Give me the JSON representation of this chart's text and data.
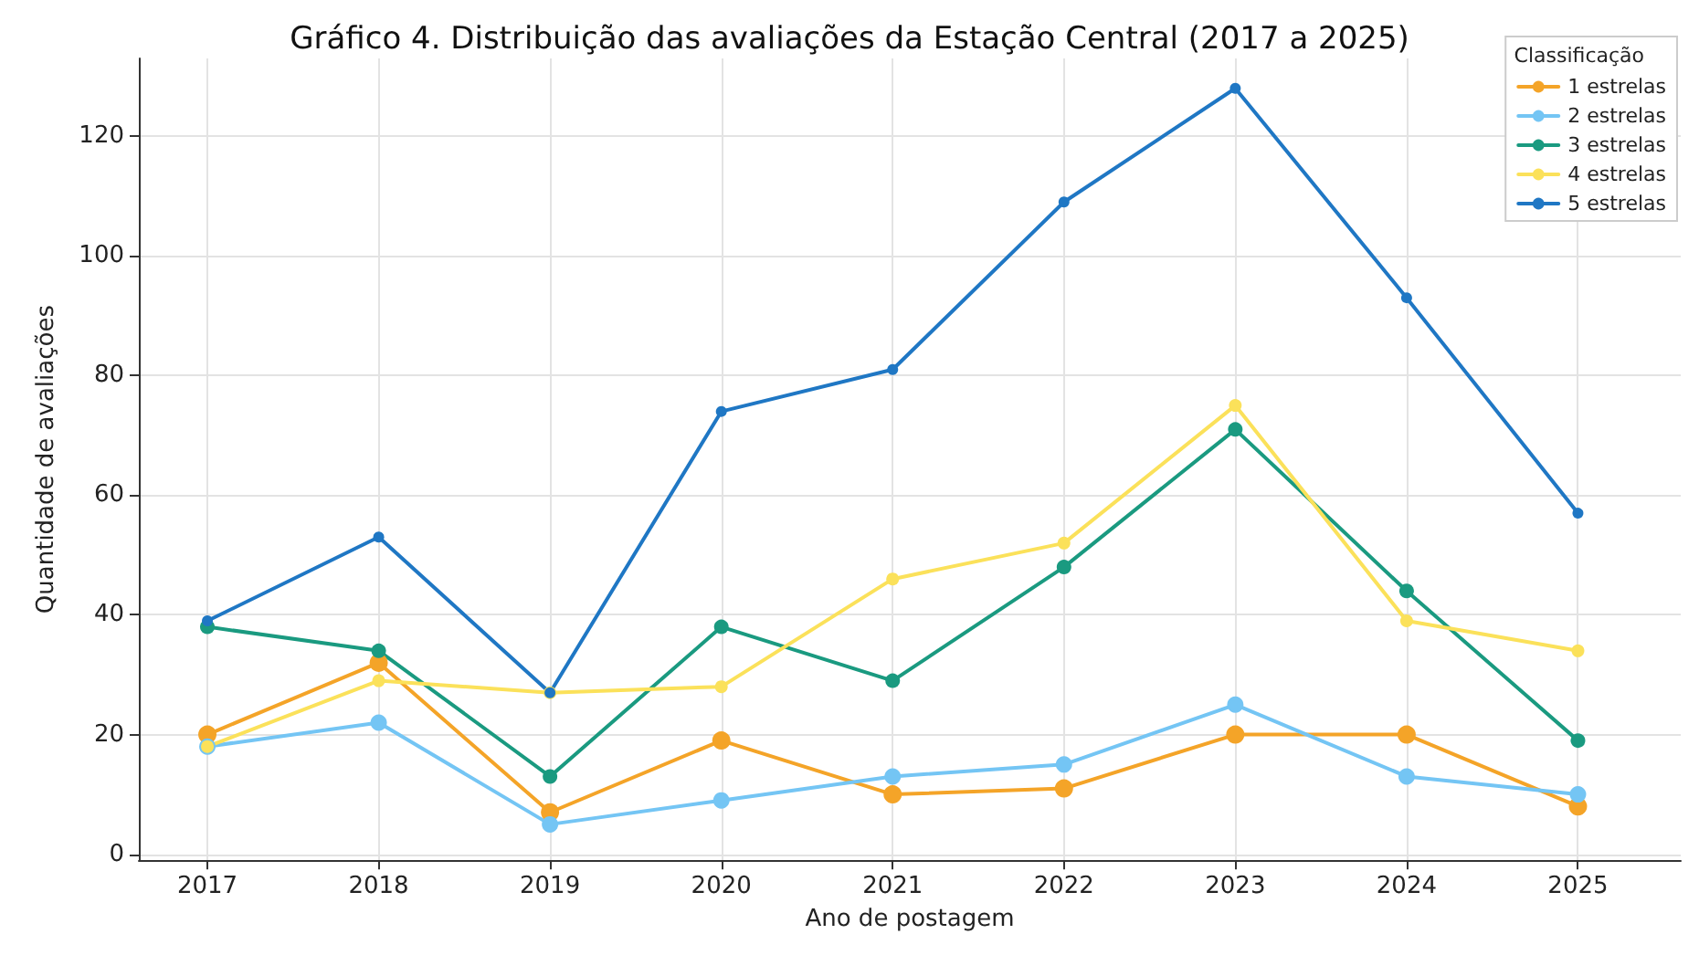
{
  "chart_data": {
    "type": "line",
    "title": "Gráfico 4. Distribuição das avaliações da Estação Central (2017 a 2025)",
    "xlabel": "Ano de postagem",
    "ylabel": "Quantidade de avaliações",
    "legend_title": "Classificação",
    "x": [
      2017,
      2018,
      2019,
      2020,
      2021,
      2022,
      2023,
      2024,
      2025
    ],
    "series": [
      {
        "name": "1 estrelas",
        "color": "#f4a428",
        "values": [
          20,
          32,
          7,
          19,
          10,
          11,
          20,
          20,
          8
        ]
      },
      {
        "name": "2 estrelas",
        "color": "#74c5f4",
        "values": [
          18,
          22,
          5,
          9,
          13,
          15,
          25,
          13,
          10
        ]
      },
      {
        "name": "3 estrelas",
        "color": "#1a9a80",
        "values": [
          38,
          34,
          13,
          38,
          29,
          48,
          71,
          44,
          19
        ]
      },
      {
        "name": "4 estrelas",
        "color": "#fbe15a",
        "values": [
          18,
          29,
          27,
          28,
          46,
          52,
          75,
          39,
          34
        ]
      },
      {
        "name": "5 estrelas",
        "color": "#1f77c4",
        "values": [
          39,
          53,
          27,
          74,
          81,
          109,
          128,
          93,
          57
        ]
      }
    ],
    "xlim": [
      2016.6,
      2025.6
    ],
    "xticks": [
      2017,
      2018,
      2019,
      2020,
      2021,
      2022,
      2023,
      2024,
      2025
    ],
    "ylim": [
      -1,
      133
    ],
    "yticks": [
      0,
      20,
      40,
      60,
      80,
      100,
      120
    ],
    "grid": true,
    "legend": "top right",
    "marker": "circle",
    "line_style": "solid"
  }
}
